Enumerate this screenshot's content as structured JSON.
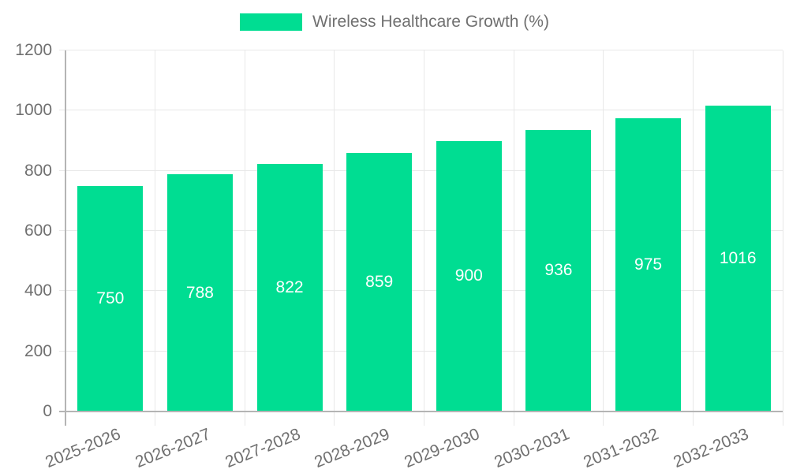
{
  "legend": {
    "label": "Wireless Healthcare Growth (%)"
  },
  "chart_data": {
    "type": "bar",
    "title": "Wireless Healthcare Growth (%)",
    "categories": [
      "2025-2026",
      "2026-2027",
      "2027-2028",
      "2028-2029",
      "2029-2030",
      "2030-2031",
      "2031-2032",
      "2032-2033"
    ],
    "series": [
      {
        "name": "Wireless Healthcare Growth (%)",
        "values": [
          750,
          788,
          822,
          859,
          900,
          936,
          975,
          1016
        ]
      }
    ],
    "value_labels": [
      "750",
      "788",
      "822",
      "859",
      "900",
      "936",
      "975",
      "1016"
    ],
    "xlabel": "",
    "ylabel": "",
    "ylim": [
      0,
      1200
    ],
    "yticks": [
      0,
      200,
      400,
      600,
      800,
      1000,
      1200
    ],
    "grid": true,
    "legend_position": "top",
    "x_label_rotation_deg": -22,
    "colors": {
      "bar": "#00dd92",
      "value_label": "#ffffff",
      "axis_text": "#707070",
      "grid_line": "#e8e8e8",
      "axis_line": "#b4b4b4",
      "background": "#ffffff"
    }
  }
}
